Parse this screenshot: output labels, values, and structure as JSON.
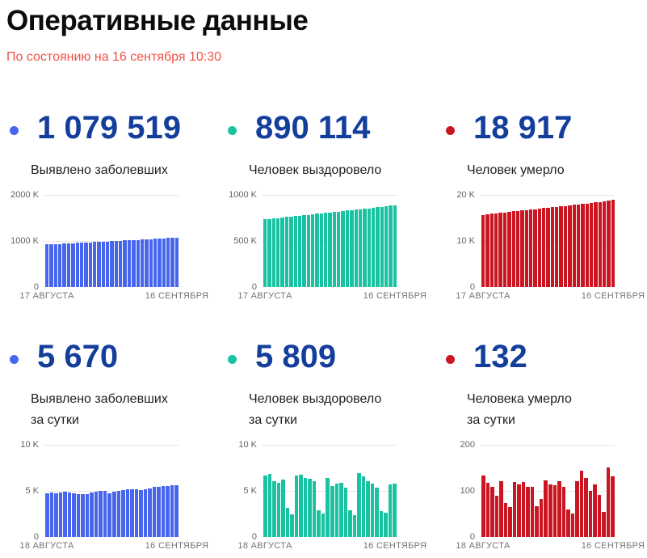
{
  "page": {
    "title": "Оперативные данные",
    "subtitle": "По состоянию на 16 сентября 10:30"
  },
  "colors": {
    "blue": "#4766ec",
    "teal": "#19c2a0",
    "red": "#cb1622",
    "number_navy": "#143e9c",
    "subtitle_red": "#ef5348"
  },
  "cards": [
    {
      "value": "1 079 519",
      "label_line1": "Выявлено заболевших",
      "label_line2": "",
      "color": "#4766ec"
    },
    {
      "value": "890 114",
      "label_line1": "Человек выздоровело",
      "label_line2": "",
      "color": "#19c2a0"
    },
    {
      "value": "18 917",
      "label_line1": "Человек умерло",
      "label_line2": "",
      "color": "#cb1622"
    },
    {
      "value": "5 670",
      "label_line1": "Выявлено заболевших",
      "label_line2": "за сутки",
      "color": "#4766ec"
    },
    {
      "value": "5 809",
      "label_line1": "Человек выздоровело",
      "label_line2": "за сутки",
      "color": "#19c2a0"
    },
    {
      "value": "132",
      "label_line1": "Человека умерло",
      "label_line2": "за сутки",
      "color": "#cb1622"
    }
  ],
  "chart_data": [
    {
      "type": "bar",
      "title": "Выявлено заболевших (всего)",
      "color": "#4766ec",
      "ymax": 2000000,
      "yticks": [
        {
          "label": "2000 K"
        },
        {
          "label": "1000 K"
        },
        {
          "label": "0"
        }
      ],
      "x_start": "17 АВГУСТА",
      "x_end": "16 СЕНТЯБРЯ",
      "values": [
        927745,
        932493,
        937321,
        942106,
        946976,
        951897,
        956749,
        961493,
        966189,
        970865,
        975576,
        980405,
        985346,
        990326,
        995319,
        1000048,
        1004795,
        1009995,
        1015105,
        1020310,
        1025505,
        1030690,
        1035789,
        1041007,
        1046370,
        1051874,
        1057362,
        1062811,
        1068320,
        1073849,
        1079519
      ]
    },
    {
      "type": "bar",
      "title": "Человек выздоровело (всего)",
      "color": "#19c2a0",
      "ymax": 1000000,
      "yticks": [
        {
          "label": "1000 K"
        },
        {
          "label": "500 K"
        },
        {
          "label": "0"
        }
      ],
      "x_start": "17 АВГУСТА",
      "x_end": "16 СЕНТЯБРЯ",
      "values": [
        736101,
        741380,
        746532,
        751635,
        756798,
        761955,
        767007,
        772053,
        777043,
        782081,
        787045,
        792062,
        797055,
        802061,
        807088,
        812119,
        817163,
        822201,
        827269,
        832354,
        837421,
        842397,
        847423,
        852446,
        857452,
        862484,
        867543,
        872649,
        878345,
        884305,
        890114
      ]
    },
    {
      "type": "bar",
      "title": "Человек умерло (всего)",
      "color": "#cb1622",
      "ymax": 20000,
      "yticks": [
        {
          "label": "20 K"
        },
        {
          "label": "10 K"
        },
        {
          "label": "0"
        }
      ],
      "x_start": "17 АВГУСТА",
      "x_end": "16 СЕНТЯБРЯ",
      "values": [
        15740,
        15842,
        15951,
        16058,
        16164,
        16268,
        16371,
        16473,
        16568,
        16665,
        16762,
        16866,
        16971,
        17077,
        17176,
        17271,
        17366,
        17463,
        17568,
        17673,
        17775,
        17871,
        17972,
        18073,
        18174,
        18277,
        18382,
        18484,
        18635,
        18785,
        18917
      ]
    },
    {
      "type": "bar",
      "title": "Выявлено заболевших за сутки",
      "color": "#4766ec",
      "ymax": 10000,
      "yticks": [
        {
          "label": "10 K"
        },
        {
          "label": "5 K"
        },
        {
          "label": "0"
        }
      ],
      "x_start": "18 АВГУСТА",
      "x_end": "16 СЕНТЯБРЯ",
      "values": [
        4748,
        4828,
        4785,
        4870,
        4921,
        4852,
        4744,
        4696,
        4711,
        4676,
        4829,
        4941,
        4980,
        4993,
        4729,
        4952,
        4995,
        5110,
        5205,
        5195,
        5185,
        5099,
        5218,
        5310,
        5488,
        5449,
        5509,
        5529,
        5642,
        5670
      ]
    },
    {
      "type": "bar",
      "title": "Человек выздоровело за сутки",
      "color": "#19c2a0",
      "ymax": 10000,
      "yticks": [
        {
          "label": "10 K"
        },
        {
          "label": "5 K"
        },
        {
          "label": "0"
        }
      ],
      "x_start": "18 АВГУСТА",
      "x_end": "16 СЕНТЯБРЯ",
      "values": [
        6656,
        6852,
        6095,
        5905,
        6235,
        3212,
        2462,
        6717,
        6791,
        6438,
        6372,
        6043,
        2902,
        2565,
        6399,
        5508,
        5817,
        5920,
        5385,
        2885,
        2414,
        6976,
        6598,
        6040,
        5785,
        5356,
        2788,
        2612,
        5745,
        5809
      ]
    },
    {
      "type": "bar",
      "title": "Человека умерло за сутки",
      "color": "#cb1622",
      "ymax": 200,
      "yticks": [
        {
          "label": "200"
        },
        {
          "label": "100"
        },
        {
          "label": "0"
        }
      ],
      "x_start": "18 АВГУСТА",
      "x_end": "16 СЕНТЯБРЯ",
      "values": [
        133,
        118,
        110,
        90,
        121,
        75,
        65,
        120,
        114,
        120,
        110,
        110,
        68,
        83,
        123,
        115,
        113,
        121,
        110,
        60,
        51,
        121,
        144,
        128,
        101,
        115,
        92,
        55,
        152,
        132
      ]
    }
  ]
}
